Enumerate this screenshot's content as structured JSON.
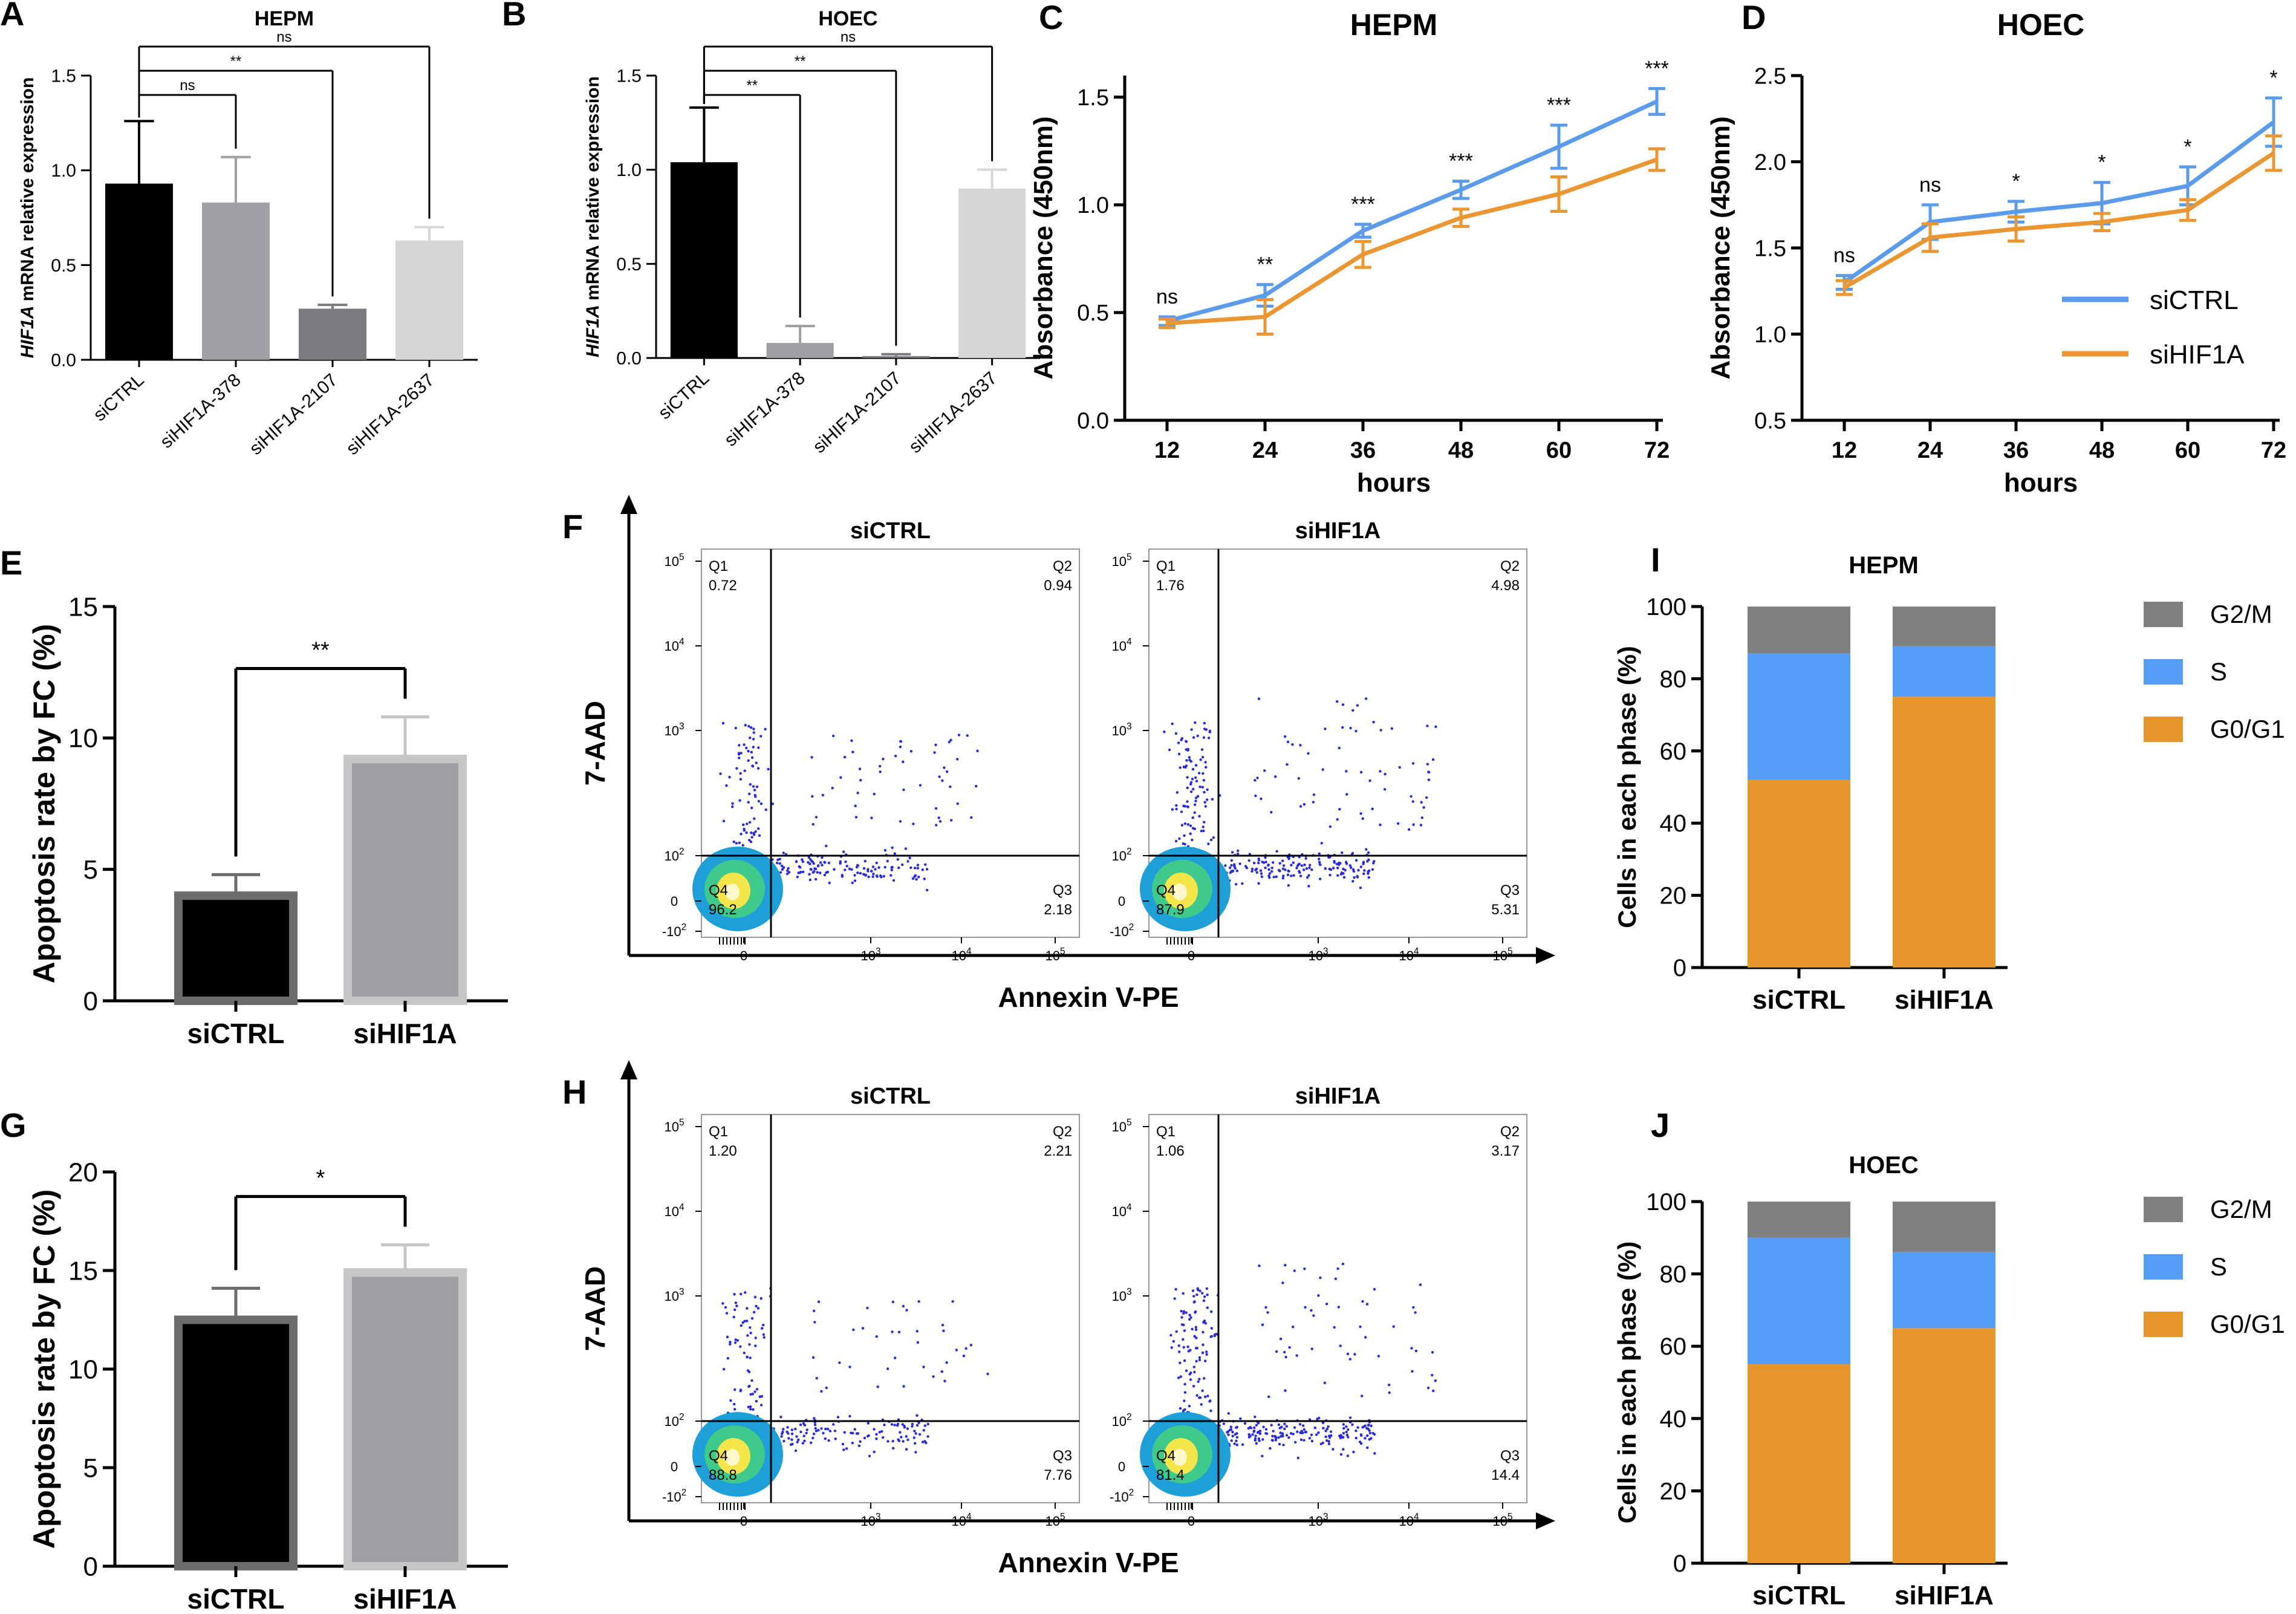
{
  "chart_data": [
    {
      "panel": "A",
      "type": "bar",
      "title": "HEPM",
      "ylabel_gene": "HIF1A",
      "ylabel": "mRNA relative expression",
      "categories": [
        "siCTRL",
        "siHIF1A-378",
        "siHIF1A-2107",
        "siHIF1A-2637"
      ],
      "values": [
        0.93,
        0.83,
        0.27,
        0.63
      ],
      "errors": [
        0.33,
        0.24,
        0.02,
        0.07
      ],
      "colors": [
        "#000000",
        "#a0a0a4",
        "#7c7c80",
        "#d6d6d8"
      ],
      "ylim": [
        0,
        1.5
      ],
      "yticks": [
        "0.0",
        "0.5",
        "1.0",
        "1.5"
      ],
      "significance": [
        {
          "from": 0,
          "to": 1,
          "label": "ns"
        },
        {
          "from": 0,
          "to": 2,
          "label": "**"
        },
        {
          "from": 0,
          "to": 3,
          "label": "ns"
        }
      ]
    },
    {
      "panel": "B",
      "type": "bar",
      "title": "HOEC",
      "ylabel_gene": "HIF1A",
      "ylabel": "mRNA relative expression",
      "categories": [
        "siCTRL",
        "siHIF1A-378",
        "siHIF1A-2107",
        "siHIF1A-2637"
      ],
      "values": [
        1.04,
        0.08,
        0.01,
        0.9
      ],
      "errors": [
        0.29,
        0.09,
        0.01,
        0.1
      ],
      "colors": [
        "#000000",
        "#a0a0a4",
        "#7c7c80",
        "#d6d6d8"
      ],
      "ylim": [
        0,
        1.5
      ],
      "yticks": [
        "0.0",
        "0.5",
        "1.0",
        "1.5"
      ],
      "significance": [
        {
          "from": 0,
          "to": 1,
          "label": "**"
        },
        {
          "from": 0,
          "to": 2,
          "label": "**"
        },
        {
          "from": 0,
          "to": 3,
          "label": "ns"
        }
      ]
    },
    {
      "panel": "C",
      "type": "line",
      "title": "HEPM",
      "xlabel": "hours",
      "ylabel": "Absorbance (450nm)",
      "x": [
        12,
        24,
        36,
        48,
        60,
        72
      ],
      "ylim": [
        0,
        1.6
      ],
      "yticks": [
        "0.0",
        "0.5",
        "1.0",
        "1.5"
      ],
      "series": [
        {
          "name": "siCTRL",
          "color": "#5b9bea",
          "values": [
            0.46,
            0.58,
            0.88,
            1.07,
            1.27,
            1.48
          ],
          "errors": [
            0.02,
            0.05,
            0.03,
            0.04,
            0.1,
            0.06
          ]
        },
        {
          "name": "siHIF1A",
          "color": "#ea9633",
          "values": [
            0.45,
            0.48,
            0.77,
            0.94,
            1.05,
            1.21
          ],
          "errors": [
            0.02,
            0.08,
            0.06,
            0.04,
            0.08,
            0.05
          ]
        }
      ],
      "annotations": [
        "ns",
        "**",
        "***",
        "***",
        "***",
        "***"
      ]
    },
    {
      "panel": "D",
      "type": "line",
      "title": "HOEC",
      "xlabel": "hours",
      "ylabel": "Absorbance (450nm)",
      "x": [
        12,
        24,
        36,
        48,
        60,
        72
      ],
      "ylim": [
        0.5,
        2.5
      ],
      "yticks": [
        "0.5",
        "1.0",
        "1.5",
        "2.0",
        "2.5"
      ],
      "series": [
        {
          "name": "siCTRL",
          "color": "#5b9bea",
          "values": [
            1.3,
            1.65,
            1.71,
            1.76,
            1.86,
            2.23
          ],
          "errors": [
            0.04,
            0.1,
            0.06,
            0.12,
            0.11,
            0.14
          ]
        },
        {
          "name": "siHIF1A",
          "color": "#ea9633",
          "values": [
            1.27,
            1.56,
            1.61,
            1.65,
            1.72,
            2.05
          ],
          "errors": [
            0.04,
            0.08,
            0.07,
            0.05,
            0.06,
            0.1
          ]
        }
      ],
      "annotations": [
        "ns",
        "ns",
        "*",
        "*",
        "*",
        "*"
      ],
      "legend": [
        "siCTRL",
        "siHIF1A"
      ]
    },
    {
      "panel": "E",
      "type": "bar",
      "ylabel": "Apoptosis rate by FC (%)",
      "categories": [
        "siCTRL",
        "siHIF1A"
      ],
      "values": [
        4.0,
        9.2
      ],
      "errors": [
        0.8,
        1.6
      ],
      "colors": [
        "#000000",
        "#a0a0a4"
      ],
      "edge_colors": [
        "#6c6c6c",
        "#c6c6c6"
      ],
      "ylim": [
        0,
        15
      ],
      "yticks": [
        "0",
        "5",
        "10",
        "15"
      ],
      "significance": [
        {
          "from": 0,
          "to": 1,
          "label": "**"
        }
      ]
    },
    {
      "panel": "G",
      "type": "bar",
      "ylabel": "Apoptosis rate by FC (%)",
      "categories": [
        "siCTRL",
        "siHIF1A"
      ],
      "values": [
        12.5,
        14.9
      ],
      "errors": [
        1.6,
        1.4
      ],
      "colors": [
        "#000000",
        "#a0a0a4"
      ],
      "edge_colors": [
        "#6c6c6c",
        "#c6c6c6"
      ],
      "ylim": [
        0,
        20
      ],
      "yticks": [
        "0",
        "5",
        "10",
        "15",
        "20"
      ],
      "significance": [
        {
          "from": 0,
          "to": 1,
          "label": "*"
        }
      ]
    },
    {
      "panel": "F",
      "type": "scatter",
      "xlabel": "Annexin V-PE",
      "ylabel": "7-AAD",
      "subplots": [
        {
          "title": "siCTRL",
          "Q1": "0.72",
          "Q2": "0.94",
          "Q3": "2.18",
          "Q4": "96.2"
        },
        {
          "title": "siHIF1A",
          "Q1": "1.76",
          "Q2": "4.98",
          "Q3": "5.31",
          "Q4": "87.9"
        }
      ],
      "quadrant_labels": [
        "Q1",
        "Q2",
        "Q3",
        "Q4"
      ],
      "xtick_labels": [
        "0",
        "10",
        "10",
        "10"
      ],
      "xtick_exponents": [
        "",
        "3",
        "4",
        "5"
      ],
      "ytick_labels": [
        "-10",
        "0",
        "10",
        "10",
        "10",
        "10"
      ],
      "ytick_exponents": [
        "2",
        "",
        "2",
        "3",
        "4",
        "5"
      ]
    },
    {
      "panel": "H",
      "type": "scatter",
      "xlabel": "Annexin V-PE",
      "ylabel": "7-AAD",
      "subplots": [
        {
          "title": "siCTRL",
          "Q1": "1.20",
          "Q2": "2.21",
          "Q3": "7.76",
          "Q4": "88.8"
        },
        {
          "title": "siHIF1A",
          "Q1": "1.06",
          "Q2": "3.17",
          "Q3": "14.4",
          "Q4": "81.4"
        }
      ],
      "quadrant_labels": [
        "Q1",
        "Q2",
        "Q3",
        "Q4"
      ],
      "xtick_labels": [
        "0",
        "10",
        "10",
        "10"
      ],
      "xtick_exponents": [
        "",
        "3",
        "4",
        "5"
      ],
      "ytick_labels": [
        "-10",
        "0",
        "10",
        "10",
        "10",
        "10"
      ],
      "ytick_exponents": [
        "2",
        "",
        "2",
        "3",
        "4",
        "5"
      ]
    },
    {
      "panel": "I",
      "type": "bar",
      "stacked": true,
      "title": "HEPM",
      "ylabel": "Cells in each phase (%)",
      "categories": [
        "siCTRL",
        "siHIF1A"
      ],
      "series": [
        {
          "name": "G0/G1",
          "color": "#e8962c",
          "values": [
            52,
            75
          ]
        },
        {
          "name": "S",
          "color": "#569ef5",
          "values": [
            35,
            14
          ]
        },
        {
          "name": "G2/M",
          "color": "#7f7f7f",
          "values": [
            13,
            11
          ]
        }
      ],
      "legend_order": [
        "G2/M",
        "S",
        "G0/G1"
      ],
      "ylim": [
        0,
        100
      ],
      "yticks": [
        "0",
        "20",
        "40",
        "60",
        "80",
        "100"
      ]
    },
    {
      "panel": "J",
      "type": "bar",
      "stacked": true,
      "title": "HOEC",
      "ylabel": "Cells in each phase (%)",
      "categories": [
        "siCTRL",
        "siHIF1A"
      ],
      "series": [
        {
          "name": "G0/G1",
          "color": "#e8962c",
          "values": [
            55,
            65
          ]
        },
        {
          "name": "S",
          "color": "#569ef5",
          "values": [
            35,
            21
          ]
        },
        {
          "name": "G2/M",
          "color": "#7f7f7f",
          "values": [
            10,
            14
          ]
        }
      ],
      "legend_order": [
        "G2/M",
        "S",
        "G0/G1"
      ],
      "ylim": [
        0,
        100
      ],
      "yticks": [
        "0",
        "20",
        "40",
        "60",
        "80",
        "100"
      ]
    }
  ]
}
